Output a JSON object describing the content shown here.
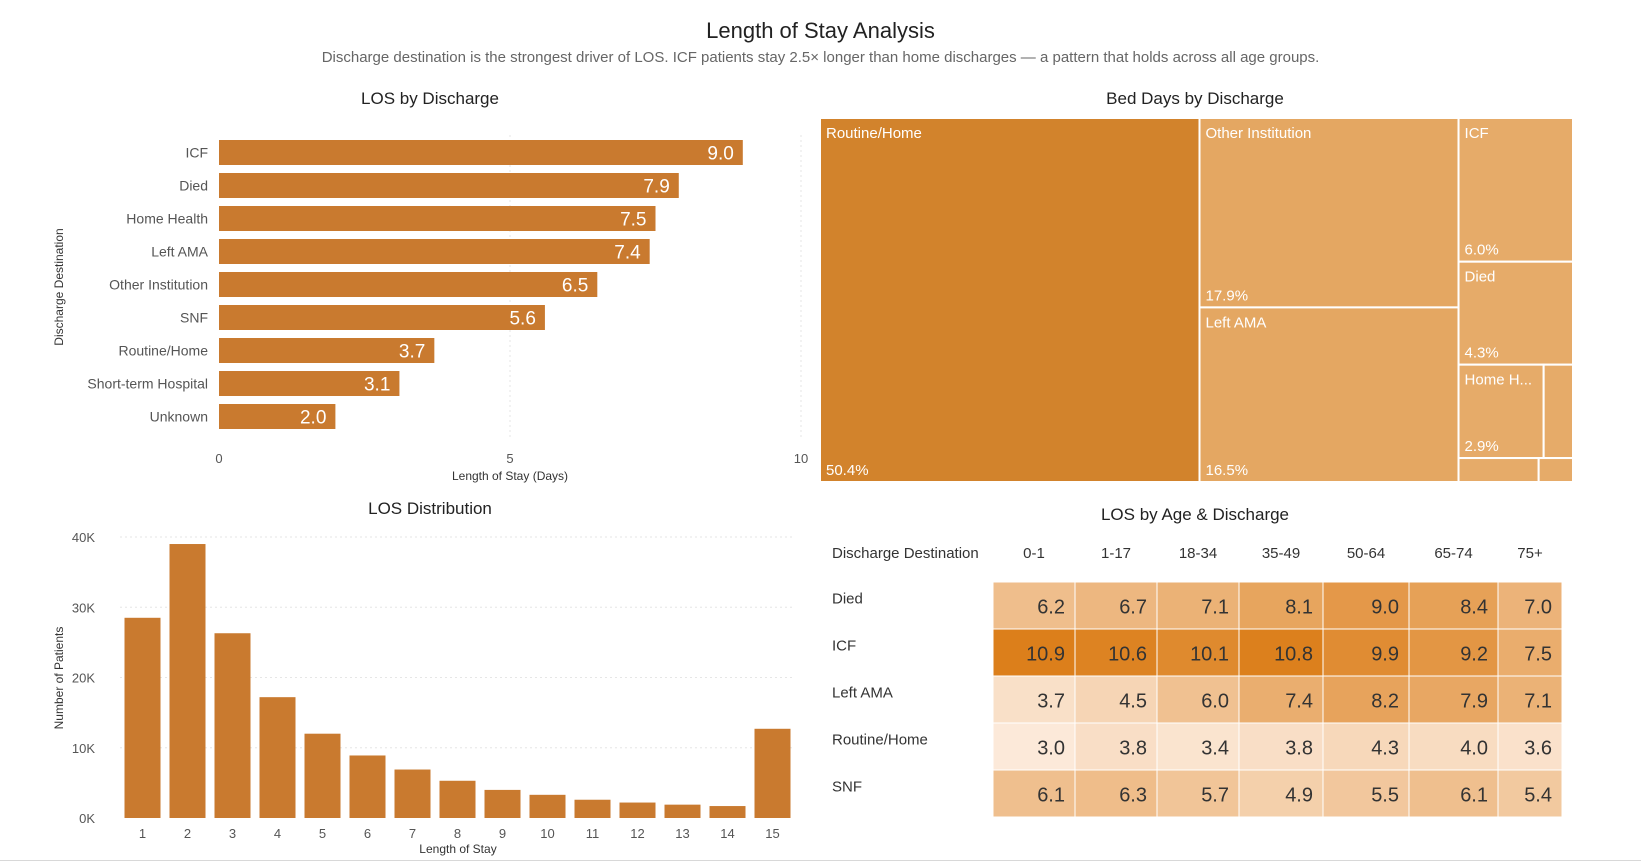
{
  "header": {
    "title": "Length of Stay Analysis",
    "subtitle": "Discharge destination is the strongest driver of LOS. ICF patients stay 2.5× longer than home discharges — a pattern that holds across all age groups."
  },
  "colors": {
    "bar": "#c97a2f",
    "tm_top": "#d2832c",
    "heat_low": "#fce9d9",
    "heat_high": "#dc7f1b"
  },
  "chart_data": [
    {
      "type": "bar",
      "orientation": "horizontal",
      "title": "LOS by Discharge",
      "xlabel": "Length of Stay (Days)",
      "ylabel": "Discharge Destination",
      "xlim": [
        0,
        10
      ],
      "xticks": [
        "0",
        "5",
        "10"
      ],
      "categories": [
        "ICF",
        "Died",
        "Home Health",
        "Left AMA",
        "Other Institution",
        "SNF",
        "Routine/Home",
        "Short-term Hospital",
        "Unknown"
      ],
      "values": [
        9.0,
        7.9,
        7.5,
        7.4,
        6.5,
        5.6,
        3.7,
        3.1,
        2.0
      ],
      "data_labels": [
        "9.0",
        "7.9",
        "7.5",
        "7.4",
        "6.5",
        "5.6",
        "3.7",
        "3.1",
        "2.0"
      ]
    },
    {
      "type": "treemap",
      "title": "Bed Days by Discharge",
      "items": [
        {
          "name": "Routine/Home",
          "label": "Routine/Home",
          "pct": 50.4,
          "pct_label": "50.4%"
        },
        {
          "name": "Other Institution",
          "label": "Other Institution",
          "pct": 17.9,
          "pct_label": "17.9%"
        },
        {
          "name": "Left AMA",
          "label": "Left AMA",
          "pct": 16.5,
          "pct_label": "16.5%"
        },
        {
          "name": "ICF",
          "label": "ICF",
          "pct": 6.0,
          "pct_label": "6.0%"
        },
        {
          "name": "Died",
          "label": "Died",
          "pct": 4.3,
          "pct_label": "4.3%"
        },
        {
          "name": "Home Health",
          "label": "Home H...",
          "pct": 2.9,
          "pct_label": "2.9%"
        },
        {
          "name": "",
          "label": "",
          "pct": 1.0,
          "pct_label": ""
        },
        {
          "name": "",
          "label": "",
          "pct": 0.7,
          "pct_label": ""
        },
        {
          "name": "",
          "label": "",
          "pct": 0.3,
          "pct_label": ""
        }
      ]
    },
    {
      "type": "bar",
      "title": "LOS Distribution",
      "xlabel": "Length of Stay",
      "ylabel": "Number of Patients",
      "ylim": [
        0,
        40000
      ],
      "yticks": [
        "0K",
        "10K",
        "20K",
        "30K",
        "40K"
      ],
      "grid": true,
      "categories": [
        "1",
        "2",
        "3",
        "4",
        "5",
        "6",
        "7",
        "8",
        "9",
        "10",
        "11",
        "12",
        "13",
        "14",
        "15"
      ],
      "values": [
        28500,
        39000,
        26300,
        17200,
        12000,
        8900,
        6900,
        5300,
        4000,
        3300,
        2600,
        2200,
        1900,
        1700,
        12700
      ]
    },
    {
      "type": "heatmap",
      "title": "LOS by Age & Discharge",
      "row_header": "Discharge Destination",
      "columns": [
        "0-1",
        "1-17",
        "18-34",
        "35-49",
        "50-64",
        "65-74",
        "75+"
      ],
      "rows": [
        "Died",
        "ICF",
        "Left AMA",
        "Routine/Home",
        "SNF"
      ],
      "values": [
        [
          6.2,
          6.7,
          7.1,
          8.1,
          9.0,
          8.4,
          7.0
        ],
        [
          10.9,
          10.6,
          10.1,
          10.8,
          9.9,
          9.2,
          7.5
        ],
        [
          3.7,
          4.5,
          6.0,
          7.4,
          8.2,
          7.9,
          7.1
        ],
        [
          3.0,
          3.8,
          3.4,
          3.8,
          4.3,
          4.0,
          3.6
        ],
        [
          6.1,
          6.3,
          5.7,
          4.9,
          5.5,
          6.1,
          5.4
        ]
      ],
      "value_labels": [
        [
          "6.2",
          "6.7",
          "7.1",
          "8.1",
          "9.0",
          "8.4",
          "7.0"
        ],
        [
          "10.9",
          "10.6",
          "10.1",
          "10.8",
          "9.9",
          "9.2",
          "7.5"
        ],
        [
          "3.7",
          "4.5",
          "6.0",
          "7.4",
          "8.2",
          "7.9",
          "7.1"
        ],
        [
          "3.0",
          "3.8",
          "3.4",
          "3.8",
          "4.3",
          "4.0",
          "3.6"
        ],
        [
          "6.1",
          "6.3",
          "5.7",
          "4.9",
          "5.5",
          "6.1",
          "5.4"
        ]
      ]
    }
  ]
}
